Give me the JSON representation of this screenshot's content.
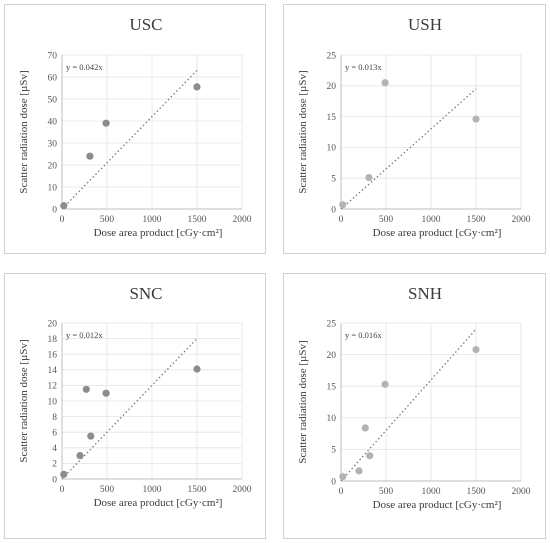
{
  "chart_data": [
    {
      "type": "scatter",
      "title": "USC",
      "xlabel": "Dose area product [cGy·cm²]",
      "ylabel": "Scatter radiation dose [µSv]",
      "xlim": [
        0,
        2000
      ],
      "ylim": [
        0,
        70
      ],
      "xticks": [
        0,
        500,
        1000,
        1500,
        2000
      ],
      "yticks": [
        0,
        10,
        20,
        30,
        40,
        50,
        60,
        70
      ],
      "grid": true,
      "points": [
        {
          "x": 20,
          "y": 1.5
        },
        {
          "x": 310,
          "y": 24
        },
        {
          "x": 490,
          "y": 39
        },
        {
          "x": 1500,
          "y": 55.5
        }
      ],
      "trendline": {
        "label": "y = 0.042x",
        "slope": 0.042,
        "x_range": [
          0,
          1500
        ]
      },
      "point_color": "#8c8c8c"
    },
    {
      "type": "scatter",
      "title": "USH",
      "xlabel": "Dose area product [cGy·cm²]",
      "ylabel": "Scatter radiation dose [µSv]",
      "xlim": [
        0,
        2000
      ],
      "ylim": [
        0,
        25
      ],
      "xticks": [
        0,
        500,
        1000,
        1500,
        2000
      ],
      "yticks": [
        0,
        5,
        10,
        15,
        20,
        25
      ],
      "grid": true,
      "points": [
        {
          "x": 20,
          "y": 0.7
        },
        {
          "x": 310,
          "y": 5.1
        },
        {
          "x": 490,
          "y": 20.5
        },
        {
          "x": 1500,
          "y": 14.6
        }
      ],
      "trendline": {
        "label": "y = 0.013x",
        "slope": 0.013,
        "x_range": [
          0,
          1500
        ]
      },
      "point_color": "#b3b3b3"
    },
    {
      "type": "scatter",
      "title": "SNC",
      "xlabel": "Dose area product [cGy·cm²]",
      "ylabel": "Scatter radiation dose [µSv]",
      "xlim": [
        0,
        2000
      ],
      "ylim": [
        0,
        20
      ],
      "xticks": [
        0,
        500,
        1000,
        1500,
        2000
      ],
      "yticks": [
        0,
        2,
        4,
        6,
        8,
        10,
        12,
        14,
        16,
        18,
        20
      ],
      "grid": true,
      "points": [
        {
          "x": 20,
          "y": 0.6
        },
        {
          "x": 200,
          "y": 3.0
        },
        {
          "x": 270,
          "y": 11.5
        },
        {
          "x": 320,
          "y": 5.5
        },
        {
          "x": 490,
          "y": 11.0
        },
        {
          "x": 1500,
          "y": 14.1
        }
      ],
      "trendline": {
        "label": "y = 0.012x",
        "slope": 0.012,
        "x_range": [
          0,
          1500
        ]
      },
      "point_color": "#8c8c8c"
    },
    {
      "type": "scatter",
      "title": "SNH",
      "xlabel": "Dose area product [cGy·cm²]",
      "ylabel": "Scatter radiation dose [µSv]",
      "xlim": [
        0,
        2000
      ],
      "ylim": [
        0,
        25
      ],
      "xticks": [
        0,
        500,
        1000,
        1500,
        2000
      ],
      "yticks": [
        0,
        5,
        10,
        15,
        20,
        25
      ],
      "grid": true,
      "points": [
        {
          "x": 20,
          "y": 0.7
        },
        {
          "x": 200,
          "y": 1.6
        },
        {
          "x": 270,
          "y": 8.4
        },
        {
          "x": 320,
          "y": 4.0
        },
        {
          "x": 490,
          "y": 15.3
        },
        {
          "x": 1500,
          "y": 20.8
        }
      ],
      "trendline": {
        "label": "y = 0.016x",
        "slope": 0.016,
        "x_range": [
          0,
          1500
        ]
      },
      "point_color": "#b3b3b3"
    }
  ]
}
